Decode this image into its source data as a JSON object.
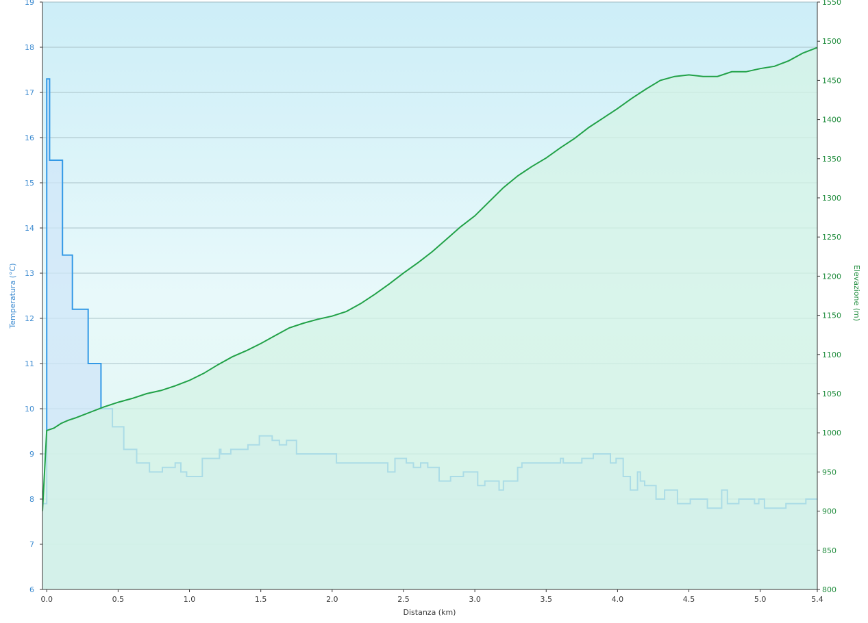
{
  "chart_data": {
    "type": "line",
    "xlabel": "Distanza  (km)",
    "ylabel_left": "Temperatura (°C)",
    "ylabel_right": "Elevazione (m)",
    "xlim": [
      -0.03,
      5.4
    ],
    "ylim_left": [
      6,
      19
    ],
    "ylim_right": [
      800,
      1550
    ],
    "grid": true,
    "x_ticks": [
      "0.0",
      "0.5",
      "1.0",
      "1.5",
      "2.0",
      "2.5",
      "3.0",
      "3.5",
      "4.0",
      "4.5",
      "5.0",
      "5.4"
    ],
    "x_tick_values": [
      0,
      0.5,
      1.0,
      1.5,
      2.0,
      2.5,
      3.0,
      3.5,
      4.0,
      4.5,
      5.0,
      5.4
    ],
    "y_left_ticks": [
      "6",
      "7",
      "8",
      "9",
      "10",
      "11",
      "12",
      "13",
      "14",
      "15",
      "16",
      "17",
      "18",
      "19"
    ],
    "y_right_ticks": [
      "800",
      "850",
      "900",
      "950",
      "1000",
      "1050",
      "1100",
      "1150",
      "1200",
      "1250",
      "1300",
      "1350",
      "1400",
      "1450",
      "1500",
      "1550"
    ],
    "series": [
      {
        "name": "Temperatura",
        "axis": "left",
        "step": true,
        "x": [
          -0.03,
          0.0,
          0.02,
          0.11,
          0.18,
          0.29,
          0.38,
          0.46,
          0.54,
          0.63,
          0.72,
          0.81,
          0.9,
          0.94,
          0.95,
          0.98,
          1.09,
          1.21,
          1.22,
          1.29,
          1.41,
          1.49,
          1.58,
          1.63,
          1.68,
          1.75,
          2.03,
          2.39,
          2.44,
          2.52,
          2.57,
          2.62,
          2.67,
          2.75,
          2.83,
          2.92,
          3.02,
          3.07,
          3.17,
          3.2,
          3.3,
          3.33,
          3.6,
          3.62,
          3.75,
          3.83,
          3.95,
          3.99,
          4.04,
          4.09,
          4.14,
          4.16,
          4.19,
          4.27,
          4.33,
          4.42,
          4.51,
          4.63,
          4.73,
          4.77,
          4.85,
          4.96,
          4.99,
          5.03,
          5.1,
          5.18,
          5.32,
          5.4
        ],
        "values": [
          7.9,
          17.3,
          15.5,
          13.4,
          12.2,
          11.0,
          10.0,
          9.6,
          9.1,
          8.8,
          8.6,
          8.7,
          8.8,
          8.6,
          8.6,
          8.5,
          8.9,
          9.1,
          9.0,
          9.1,
          9.2,
          9.4,
          9.3,
          9.2,
          9.3,
          9.0,
          8.8,
          8.6,
          8.9,
          8.8,
          8.7,
          8.8,
          8.7,
          8.4,
          8.5,
          8.6,
          8.3,
          8.4,
          8.2,
          8.4,
          8.7,
          8.8,
          8.9,
          8.8,
          8.9,
          9.0,
          8.8,
          8.9,
          8.5,
          8.2,
          8.6,
          8.4,
          8.3,
          8.0,
          8.2,
          7.9,
          8.0,
          7.8,
          8.2,
          7.9,
          8.0,
          7.9,
          8.0,
          7.8,
          7.8,
          7.9,
          8.0,
          8.0
        ],
        "color": "#3399e6",
        "fill": "#cfe6f8"
      },
      {
        "name": "Elevazione",
        "axis": "right",
        "x": [
          -0.03,
          0.0,
          0.05,
          0.1,
          0.15,
          0.2,
          0.3,
          0.4,
          0.5,
          0.6,
          0.7,
          0.8,
          0.9,
          1.0,
          1.1,
          1.2,
          1.3,
          1.4,
          1.5,
          1.6,
          1.7,
          1.8,
          1.9,
          2.0,
          2.1,
          2.2,
          2.3,
          2.4,
          2.5,
          2.6,
          2.7,
          2.8,
          2.9,
          3.0,
          3.1,
          3.2,
          3.3,
          3.4,
          3.5,
          3.6,
          3.7,
          3.8,
          3.9,
          4.0,
          4.1,
          4.2,
          4.3,
          4.4,
          4.5,
          4.6,
          4.7,
          4.8,
          4.9,
          5.0,
          5.1,
          5.2,
          5.3,
          5.4
        ],
        "values": [
          900,
          1003,
          1006,
          1012,
          1016,
          1019,
          1026,
          1033,
          1039,
          1044,
          1050,
          1054,
          1060,
          1067,
          1076,
          1087,
          1097,
          1105,
          1114,
          1124,
          1134,
          1140,
          1145,
          1149,
          1155,
          1165,
          1177,
          1190,
          1204,
          1217,
          1231,
          1247,
          1263,
          1277,
          1295,
          1313,
          1328,
          1340,
          1351,
          1364,
          1376,
          1390,
          1402,
          1414,
          1427,
          1439,
          1450,
          1455,
          1457,
          1455,
          1455,
          1461,
          1461,
          1465,
          1468,
          1475,
          1485,
          1492
        ],
        "color": "#21a147",
        "fill": "#d4f3e6"
      }
    ]
  },
  "colors": {
    "axis": "#333333",
    "grid": "#a9c2c8",
    "left_axis_text": "#3b8ad0",
    "right_axis_text": "#1f8c3c",
    "bg_top": "#cdeef8",
    "bg_mid": "#e8f9fa",
    "bg_bottom": "#dff7f0"
  }
}
